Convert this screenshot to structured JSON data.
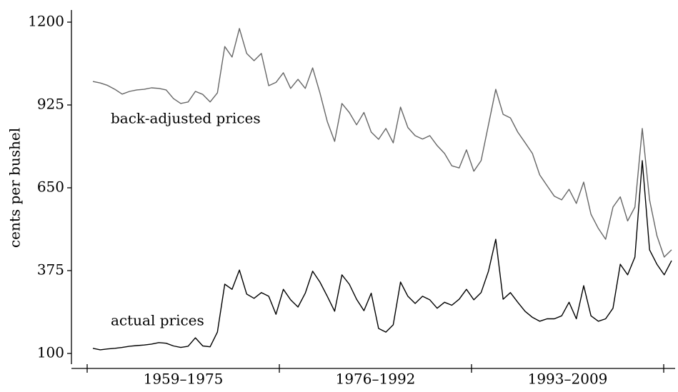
{
  "chart_data": {
    "type": "line",
    "ylabel": "cents per bushel",
    "periods": [
      "1959–1975",
      "1976–1992",
      "1993–2009"
    ],
    "series": [
      {
        "name": "back-adjusted prices",
        "color": "#666666",
        "values": [
          1003,
          998,
          990,
          977,
          961,
          970,
          975,
          977,
          982,
          980,
          975,
          946,
          930,
          935,
          970,
          960,
          935,
          965,
          1119,
          1084,
          1179,
          1096,
          1072,
          1096,
          989,
          1000,
          1032,
          980,
          1010,
          980,
          1048,
          965,
          870,
          804,
          930,
          900,
          859,
          900,
          835,
          811,
          847,
          799,
          918,
          850,
          823,
          812,
          823,
          790,
          764,
          723,
          716,
          776,
          705,
          740,
          859,
          977,
          894,
          882,
          835,
          800,
          764,
          693,
          657,
          622,
          610,
          645,
          598,
          669,
          562,
          515,
          479,
          586,
          620,
          540,
          586,
          847,
          610,
          491,
          420,
          444
        ]
      },
      {
        "name": "actual prices",
        "color": "#000000",
        "values": [
          117,
          112,
          115,
          117,
          120,
          124,
          126,
          128,
          131,
          136,
          134,
          125,
          120,
          124,
          152,
          125,
          122,
          171,
          330,
          313,
          377,
          297,
          283,
          302,
          290,
          230,
          313,
          278,
          254,
          300,
          373,
          337,
          290,
          240,
          361,
          330,
          280,
          242,
          300,
          183,
          171,
          195,
          337,
          290,
          266,
          290,
          278,
          250,
          270,
          260,
          280,
          313,
          278,
          302,
          373,
          479,
          280,
          302,
          270,
          240,
          220,
          207,
          215,
          215,
          225,
          270,
          215,
          325,
          225,
          207,
          215,
          250,
          396,
          361,
          420,
          740,
          444,
          396,
          361,
          408
        ]
      }
    ],
    "ylim": [
      100,
      1200
    ],
    "yticks": [
      100,
      375,
      650,
      925,
      1200
    ]
  }
}
